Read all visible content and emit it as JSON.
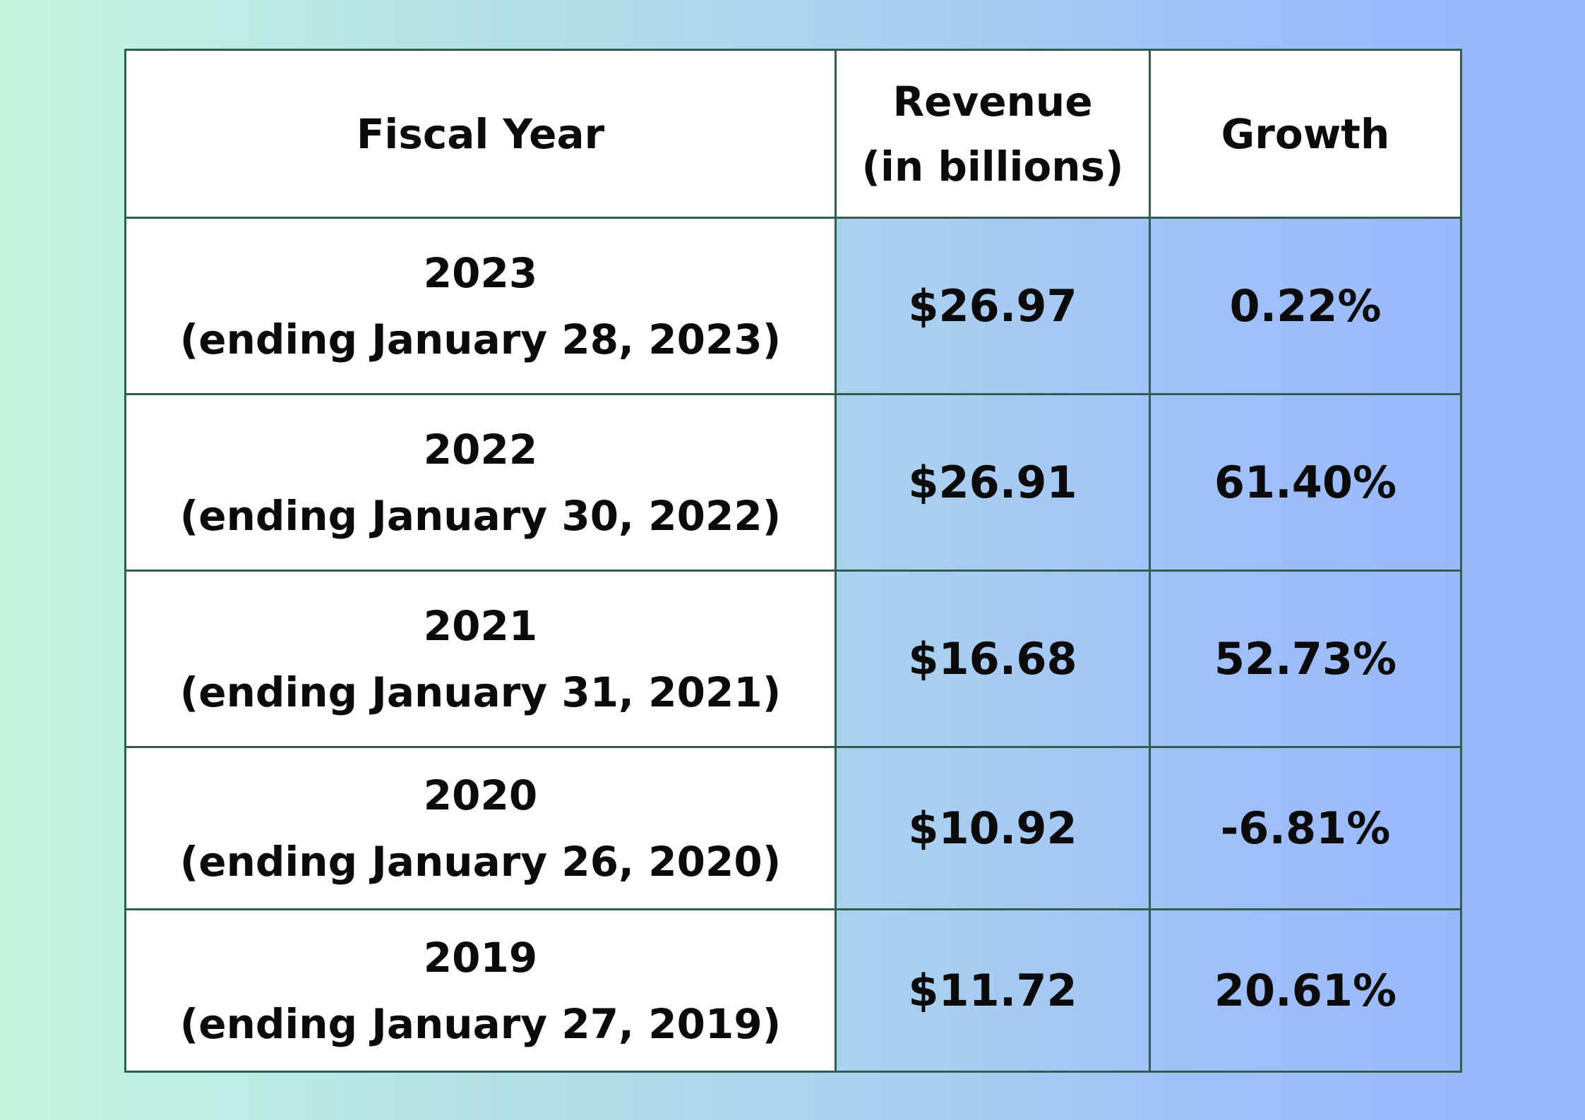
{
  "chart_data": {
    "type": "table",
    "columns": [
      {
        "line1": "Fiscal Year",
        "line2": ""
      },
      {
        "line1": "Revenue",
        "line2": "(in billions)"
      },
      {
        "line1": "Growth",
        "line2": ""
      }
    ],
    "rows": [
      {
        "year": "2023",
        "ending": "(ending January 28, 2023)",
        "revenue": "$26.97",
        "growth": "0.22%"
      },
      {
        "year": "2022",
        "ending": "(ending January 30, 2022)",
        "revenue": "$26.91",
        "growth": "61.40%"
      },
      {
        "year": "2021",
        "ending": "(ending January 31, 2021)",
        "revenue": "$16.68",
        "growth": "52.73%"
      },
      {
        "year": "2020",
        "ending": "(ending January 26, 2020)",
        "revenue": "$10.92",
        "growth": "-6.81%"
      },
      {
        "year": "2019",
        "ending": "(ending January 27, 2019)",
        "revenue": "$11.72",
        "growth": "20.61%"
      }
    ],
    "values": {
      "revenue_billions": [
        26.97,
        26.91,
        16.68,
        10.92,
        11.72
      ],
      "growth_percent": [
        0.22,
        61.4,
        52.73,
        -6.81,
        20.61
      ]
    }
  },
  "colors": {
    "background_left": "#c2f7df",
    "background_right": "#97b6fc",
    "border": "#2f5d4f",
    "text": "#0b0b0b",
    "header_fill": "#ffffff"
  }
}
